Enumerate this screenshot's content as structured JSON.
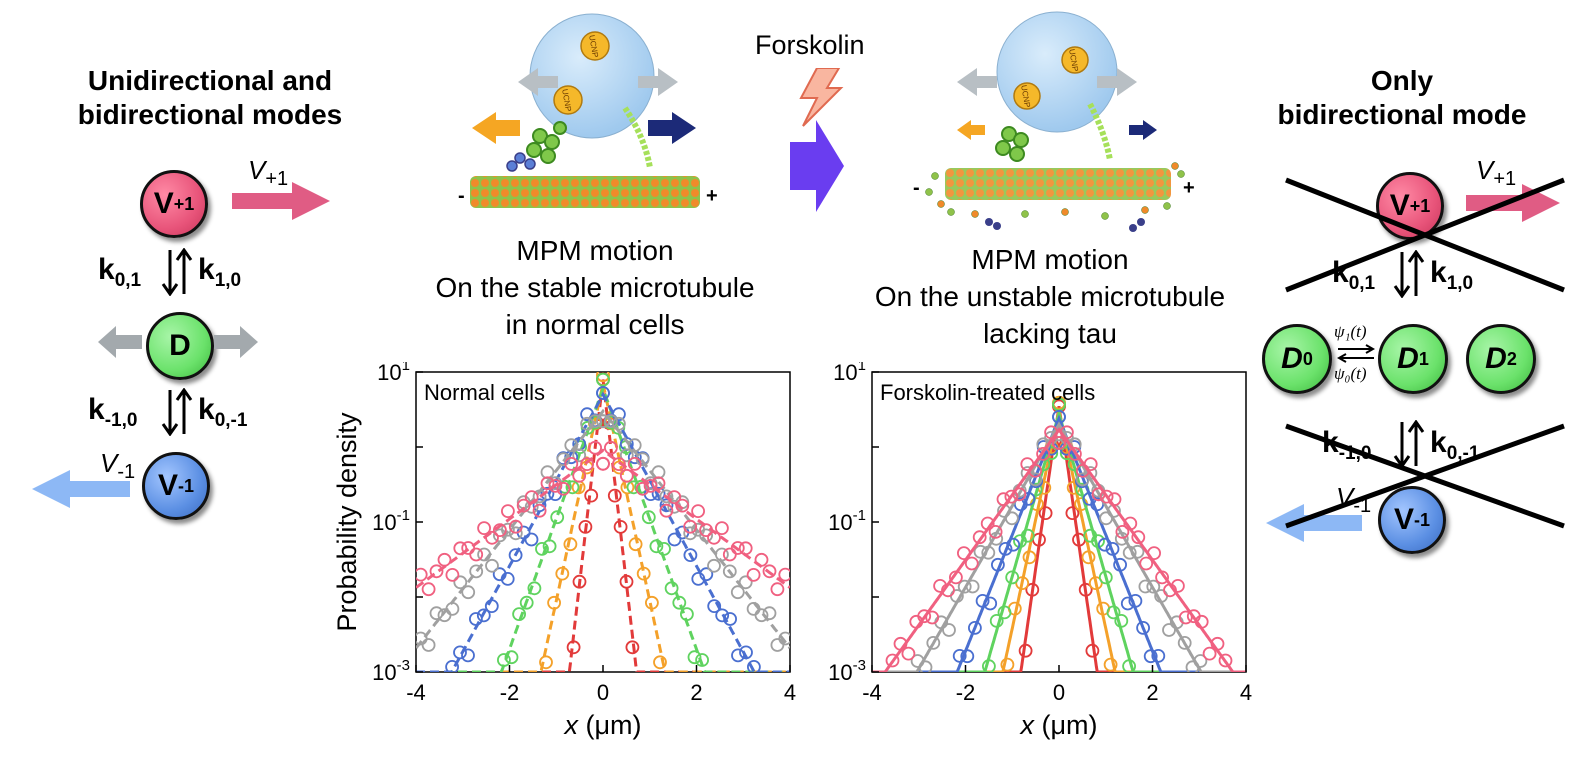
{
  "left_panel": {
    "title_line1": "Unidirectional and",
    "title_line2": "bidirectional modes",
    "states": [
      {
        "label": "V",
        "sub": "+1",
        "color": "#e8547a"
      },
      {
        "label": "D",
        "sub": "",
        "color": "#6be26b"
      },
      {
        "label": "V",
        "sub": "-1",
        "color": "#5b8fe3"
      }
    ],
    "rates_top": {
      "left": "k",
      "left_sub": "0,1",
      "right": "k",
      "right_sub": "1,0"
    },
    "rates_bottom": {
      "left": "k",
      "left_sub": "-1,0",
      "right": "k",
      "right_sub": "0,-1"
    },
    "velocity_plus": {
      "symbol": "V",
      "sub": "+1"
    },
    "velocity_minus": {
      "symbol": "V",
      "sub": "-1"
    }
  },
  "center": {
    "drug_label": "Forskolin",
    "left_caption": [
      "MPM motion",
      "On the stable  microtubule",
      "in normal cells"
    ],
    "right_caption": [
      "MPM motion",
      "On the unstable  microtubule",
      "lacking tau"
    ],
    "particle_label": "UCNP",
    "minus_end": "-",
    "plus_end": "+"
  },
  "right_panel": {
    "title_line1": "Only",
    "title_line2": "bidirectional  mode",
    "diffusive_states": [
      {
        "label": "D",
        "sub": "0"
      },
      {
        "label": "D",
        "sub": "1"
      },
      {
        "label": "D",
        "sub": "2"
      }
    ],
    "psi_forward": "ψ₁(t)",
    "psi_backward": "ψ₀(t)"
  },
  "colors": {
    "red": "#e23a3a",
    "pink": "#f06080",
    "orange": "#f4a12a",
    "yellow": "#e8c81a",
    "green": "#5fd35f",
    "blue": "#4a6fd0",
    "gray": "#a0a0a0",
    "purple": "#6a3df0",
    "arrow_pink": "#e05c84",
    "arrow_blue": "#8db8f5",
    "arrow_orange": "#f5a623",
    "arrow_navy": "#1c2a78"
  },
  "chart_data": [
    {
      "type": "scatter",
      "title": "Normal cells",
      "xlabel": "x (μm)",
      "ylabel": "Probability density",
      "xlim": [
        -4,
        4
      ],
      "ylim": [
        0.001,
        10
      ],
      "yscale": "log",
      "xticks": [
        -4,
        -2,
        0,
        2,
        4
      ],
      "yticks": [
        "10^-3",
        "10^-1",
        "10^1"
      ],
      "fit_style": "dashed",
      "series": [
        {
          "color": "#e23a3a",
          "scale": 0.08,
          "peak": 8
        },
        {
          "color": "#f4a12a",
          "scale": 0.15,
          "peak": 7
        },
        {
          "color": "#5fd35f",
          "scale": 0.25,
          "peak": 6
        },
        {
          "color": "#4a6fd0",
          "scale": 0.38,
          "peak": 5
        },
        {
          "color": "#a0a0a0",
          "scale": 0.55,
          "peak": 3
        },
        {
          "color": "#f06080",
          "scale": 0.95,
          "peak": 0.9
        }
      ]
    },
    {
      "type": "scatter",
      "title": "Forskolin-treated cells",
      "xlabel": "x (μm)",
      "ylabel": "",
      "xlim": [
        -4,
        4
      ],
      "ylim": [
        0.001,
        10
      ],
      "yscale": "log",
      "xticks": [
        -4,
        -2,
        0,
        2,
        4
      ],
      "yticks": [
        "10^-3",
        "10^-1",
        "10^1"
      ],
      "fit_style": "solid",
      "series": [
        {
          "color": "#e23a3a",
          "scale": 0.1,
          "peak": 3.5
        },
        {
          "color": "#f4a12a",
          "scale": 0.15,
          "peak": 3
        },
        {
          "color": "#5fd35f",
          "scale": 0.2,
          "peak": 2.8
        },
        {
          "color": "#4a6fd0",
          "scale": 0.28,
          "peak": 2.4
        },
        {
          "color": "#a0a0a0",
          "scale": 0.4,
          "peak": 2
        },
        {
          "color": "#f06080",
          "scale": 0.5,
          "peak": 1.7
        }
      ]
    }
  ]
}
